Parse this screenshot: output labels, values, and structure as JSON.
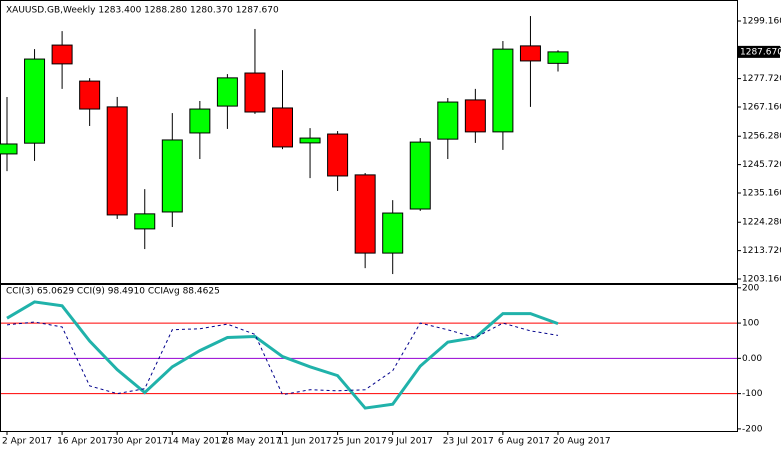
{
  "chart_data": [
    {
      "type": "candlestick",
      "title": "XAUUSD.GB,Weekly  1283.400 1288.280 1280.370 1287.670",
      "categories": [
        "2 Apr 2017",
        null,
        "16 Apr 2017",
        null,
        "30 Apr 2017",
        null,
        "14 May 2017",
        null,
        "28 May 2017",
        null,
        "11 Jun 2017",
        null,
        "25 Jun 2017",
        null,
        "9 Jul 2017",
        null,
        "23 Jul 2017",
        null,
        "6 Aug 2017",
        null,
        "20 Aug 2017"
      ],
      "open": [
        1249.7,
        1253.7,
        1290.2,
        1276.8,
        1267.2,
        1221.8,
        1228.1,
        1257.5,
        1267.5,
        1279.8,
        1266.8,
        1253.8,
        1257.1,
        1241.9,
        1212.8,
        1229.2,
        1255.2,
        1269.8,
        1257.9,
        1289.9,
        1283.4
      ],
      "high": [
        1270.9,
        1288.7,
        1295.4,
        1277.9,
        1270.9,
        1236.6,
        1264.9,
        1269.4,
        1279.4,
        1296.2,
        1280.9,
        1259.3,
        1258.2,
        1242.6,
        1232.5,
        1255.6,
        1270.5,
        1273.9,
        1291.7,
        1301.0,
        1288.28
      ],
      "low": [
        1243.3,
        1247.1,
        1273.9,
        1260.1,
        1225.5,
        1214.3,
        1222.5,
        1247.8,
        1259.0,
        1264.6,
        1251.5,
        1240.7,
        1235.9,
        1207.2,
        1205.0,
        1228.5,
        1247.8,
        1253.8,
        1251.2,
        1267.2,
        1280.37
      ],
      "close": [
        1253.4,
        1285.0,
        1283.2,
        1266.4,
        1227.0,
        1227.4,
        1254.9,
        1266.4,
        1278.0,
        1265.3,
        1252.3,
        1255.6,
        1241.5,
        1212.8,
        1227.7,
        1254.1,
        1269.0,
        1257.9,
        1288.7,
        1284.3,
        1287.67
      ],
      "up_color": "#00ff00",
      "down_color": "#ff0000",
      "ylim": [
        1201.3,
        1306.6
      ],
      "yticks": [
        {
          "value": 1299.16,
          "label": "1299.160"
        },
        {
          "value": 1288.28,
          "label": "1288.280"
        },
        {
          "value": 1277.72,
          "label": "1277.720"
        },
        {
          "value": 1267.16,
          "label": "1267.160"
        },
        {
          "value": 1256.28,
          "label": "1256.280"
        },
        {
          "value": 1245.72,
          "label": "1245.720"
        },
        {
          "value": 1235.16,
          "label": "1235.160"
        },
        {
          "value": 1224.28,
          "label": "1224.280"
        },
        {
          "value": 1213.72,
          "label": "1213.720"
        },
        {
          "value": 1203.16,
          "label": "1203.160"
        }
      ],
      "current_price": {
        "value": 1287.67,
        "label": "1287.670"
      }
    },
    {
      "type": "line",
      "title": "CCI(3) 65.0629  CCI(9) 98.4910  CCIAvg 88.4625",
      "series": [
        {
          "color": "#20b2aa",
          "width": 3,
          "dashed": false,
          "values": [
            114,
            160,
            149,
            49,
            -32,
            -97,
            -24,
            22,
            59,
            62,
            5,
            -24,
            -49,
            -141,
            -130,
            -22,
            46,
            59,
            127,
            127,
            98.49
          ]
        },
        {
          "color": "#00008b",
          "width": 1,
          "dashed": true,
          "values": [
            95,
            103,
            89,
            -78,
            -100,
            -86,
            81,
            84,
            97,
            68,
            -103,
            -89,
            -92,
            -89,
            -35,
            100,
            81,
            59,
            100,
            78,
            65.06
          ]
        }
      ],
      "levels": [
        100,
        0,
        -100
      ],
      "level_colors": [
        "#ff0000",
        "#9400d3",
        "#ff0000"
      ],
      "ylim": [
        -206,
        208
      ],
      "yticks": [
        200,
        100,
        {
          "value": 0,
          "label": "0.00"
        },
        -100,
        -200
      ]
    }
  ]
}
